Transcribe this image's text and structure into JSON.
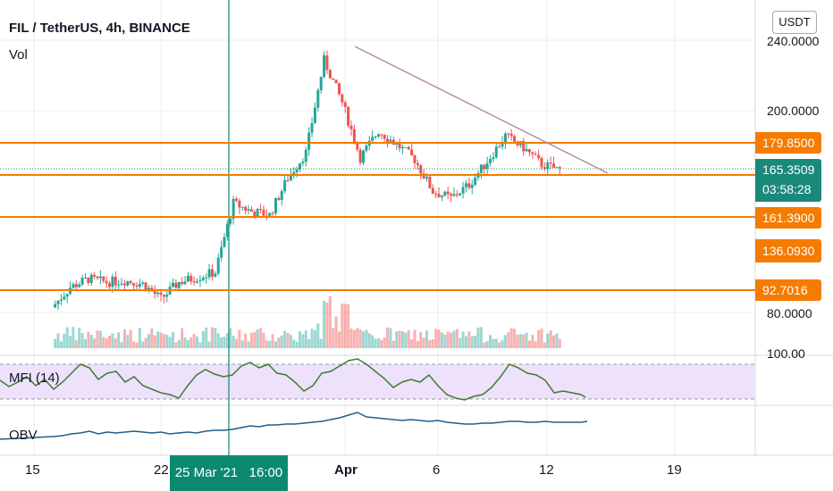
{
  "header": {
    "symbol_title": "FIL / TetherUS, 4h, BINANCE",
    "vol_label": "Vol",
    "currency_button": "USDT"
  },
  "price_axis": {
    "ticks": [
      "240.0000",
      "200.0000",
      "80.0000"
    ],
    "volume_axis_tick": "100.00"
  },
  "price_labels": {
    "level_179": "179.8500",
    "current_price": "165.3509",
    "countdown": "03:58:28",
    "level_161": "161.3900",
    "level_136": "136.0930",
    "level_92": "92.7016"
  },
  "indicators": {
    "mfi_label": "MFI (14)",
    "obv_label": "OBV"
  },
  "time_axis": {
    "ticks": [
      "15",
      "22",
      "Apr",
      "6",
      "12",
      "19"
    ],
    "crosshair_label": "25 Mar '21   16:00"
  },
  "colors": {
    "up": "#26a69a",
    "down": "#ef5350",
    "level_line": "#f57c00",
    "trendline": "#b48aa0",
    "crosshair": "#0b8a6f",
    "mfi_band": "#ede1fb",
    "mfi_line": "#3f7d2e",
    "obv_line": "#1f5f8b",
    "current_price_bg": "#19897a"
  },
  "chart_data": {
    "type": "candlestick",
    "timeframe": "4h",
    "exchange": "BINANCE",
    "pair": "FIL / TetherUS",
    "x_labels": [
      "15",
      "22",
      "Apr",
      "6",
      "12",
      "19"
    ],
    "horizontal_levels": [
      179.85,
      161.39,
      136.093,
      92.7016
    ],
    "current_price": 165.3509,
    "trendline": {
      "from": {
        "x": "2021-04-01",
        "price": 238
      },
      "to": {
        "x": "2021-04-15",
        "price": 162
      }
    },
    "crosshair_time": "25 Mar '21 16:00",
    "price_path_days": [
      {
        "day": 16,
        "price": 83
      },
      {
        "day": 17,
        "price": 95
      },
      {
        "day": 18,
        "price": 100
      },
      {
        "day": 19,
        "price": 98
      },
      {
        "day": 20,
        "price": 99
      },
      {
        "day": 21,
        "price": 97
      },
      {
        "day": 22,
        "price": 88
      },
      {
        "day": 23,
        "price": 98
      },
      {
        "day": 24,
        "price": 101
      },
      {
        "day": 25,
        "price": 104
      },
      {
        "day": 26,
        "price": 145
      },
      {
        "day": 27,
        "price": 140
      },
      {
        "day": 28,
        "price": 138
      },
      {
        "day": 29,
        "price": 160
      },
      {
        "day": 30,
        "price": 175
      },
      {
        "day": 31,
        "price": 230
      },
      {
        "day": 32,
        "price": 205
      },
      {
        "day": 33,
        "price": 172
      },
      {
        "day": 34,
        "price": 188
      },
      {
        "day": 35,
        "price": 180
      },
      {
        "day": 36,
        "price": 171
      },
      {
        "day": 37,
        "price": 152
      },
      {
        "day": 38,
        "price": 148
      },
      {
        "day": 39,
        "price": 156
      },
      {
        "day": 40,
        "price": 170
      },
      {
        "day": 41,
        "price": 185
      },
      {
        "day": 42,
        "price": 178
      },
      {
        "day": 43,
        "price": 168
      },
      {
        "day": 44,
        "price": 165
      }
    ]
  }
}
